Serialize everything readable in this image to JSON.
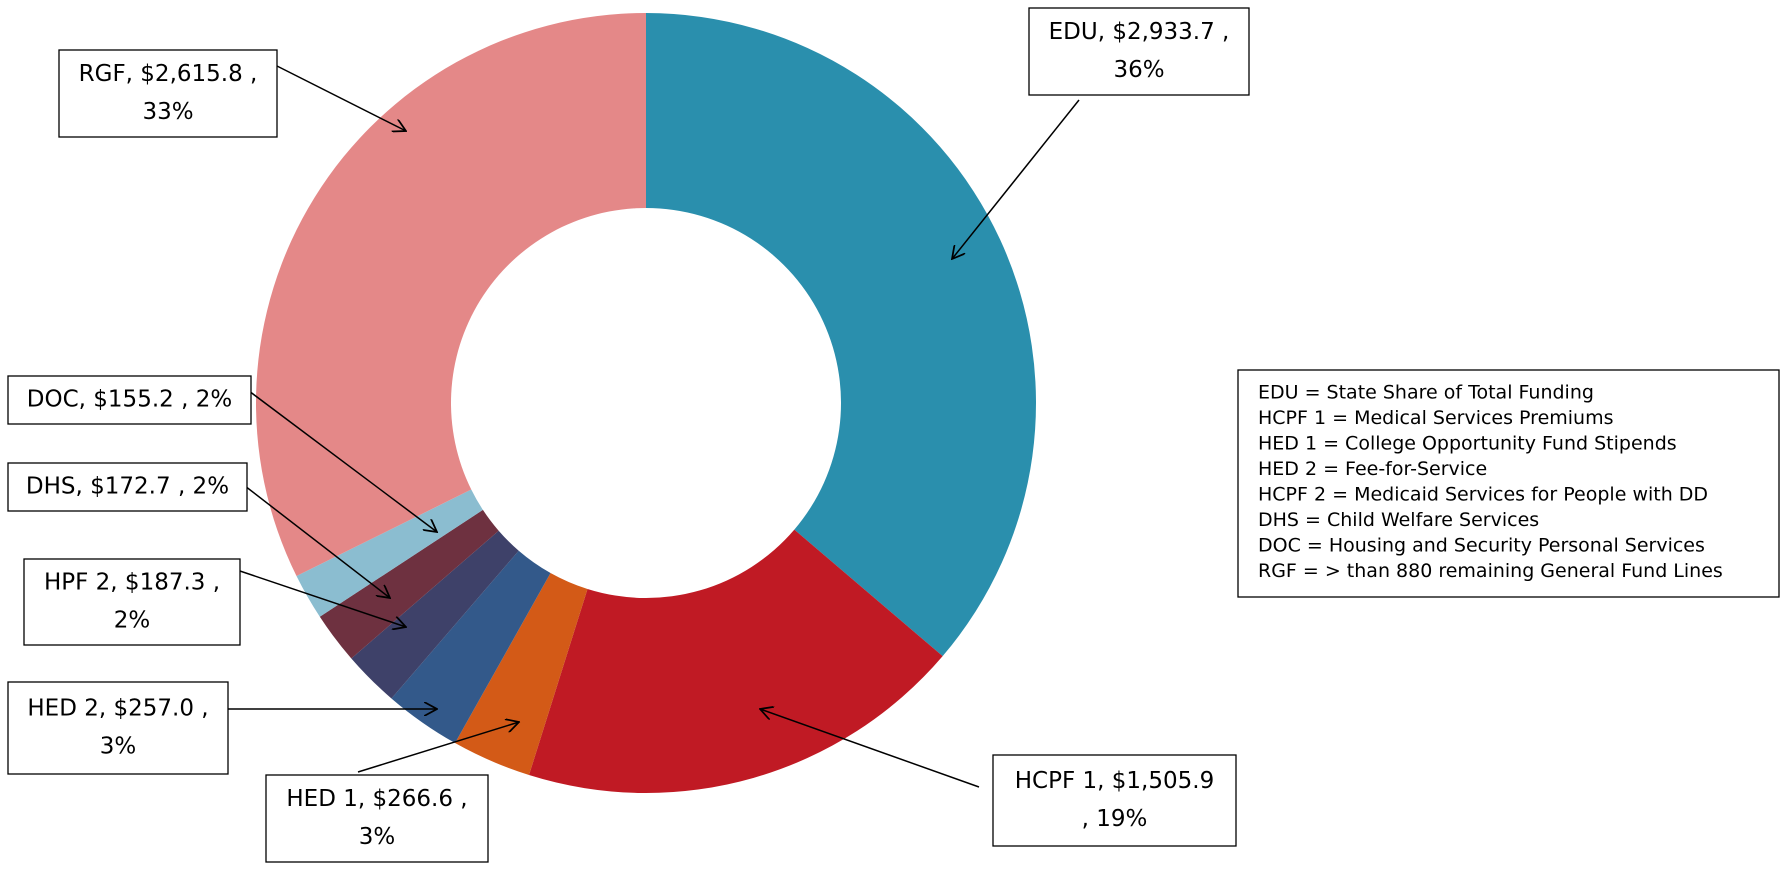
{
  "chart_data": {
    "type": "donut",
    "categories": [
      "EDU",
      "HCPF 1",
      "HED 1",
      "HED 2",
      "HPF 2",
      "DHS",
      "DOC",
      "RGF"
    ],
    "values": [
      2933.7,
      1505.9,
      266.6,
      257.0,
      187.3,
      172.7,
      155.2,
      2615.8
    ],
    "value_labels": [
      [
        "EDU, $2,933.7 ,",
        "36%"
      ],
      [
        "HCPF 1, $1,505.9",
        ", 19%"
      ],
      [
        "HED 1, $266.6 ,",
        "3%"
      ],
      [
        "HED 2, $257.0 ,",
        "3%"
      ],
      [
        "HPF 2, $187.3 ,",
        "2%"
      ],
      [
        "DHS, $172.7 , 2%"
      ],
      [
        "DOC, $155.2 , 2%"
      ],
      [
        "RGF, $2,615.8 ,",
        "33%"
      ]
    ],
    "colors": [
      "#2a8fad",
      "#c01a24",
      "#d35a17",
      "#33598a",
      "#3e4169",
      "#6e3140",
      "#8bbdd0",
      "#e48888"
    ],
    "legend_notes": [
      "EDU = State Share of Total Funding",
      "HCPF 1 = Medical Services Premiums",
      "HED 1 = College Opportunity Fund Stipends",
      "HED 2 = Fee-for-Service",
      "HCPF 2 = Medicaid Services for People with DD",
      "DHS = Child Welfare Services",
      "DOC = Housing and Security Personal Services",
      "RGF = > than 880 remaining General Fund Lines"
    ]
  }
}
